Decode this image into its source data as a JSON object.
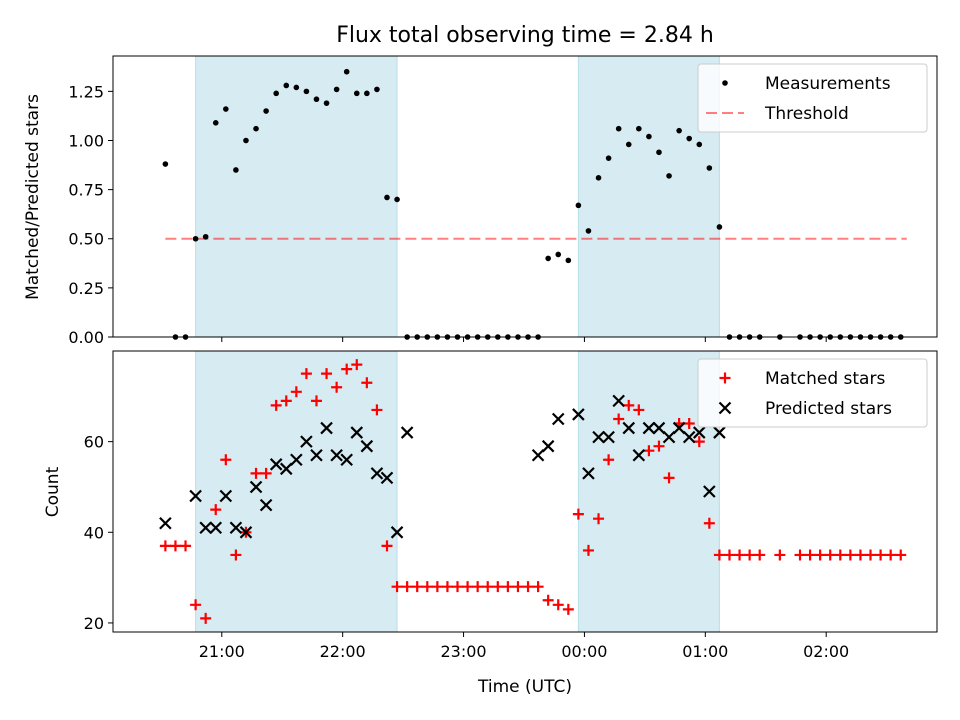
{
  "title": "Flux total observing time = 2.84 h",
  "xlabel": "Time (UTC)",
  "colors": {
    "band": "#add8e6",
    "measurement": "#000000",
    "threshold": "#ff0000",
    "matched": "#ff0000",
    "predicted": "#000000"
  },
  "chart_data": [
    {
      "type": "scatter",
      "ylabel": "Matched/Predicted stars",
      "ylim": [
        0,
        1.43
      ],
      "yticks": [
        "0.00",
        "0.25",
        "0.50",
        "0.75",
        "1.00",
        "1.25"
      ],
      "legend": {
        "placement": "top-right",
        "entries": [
          "Measurements",
          "Threshold"
        ]
      },
      "threshold": {
        "name": "Threshold",
        "y": 0.5,
        "x_start": "20:32",
        "x_end": "02:40"
      },
      "series": [
        {
          "name": "Measurements",
          "x": [
            "20:32",
            "20:37",
            "20:42",
            "20:47",
            "20:52",
            "20:57",
            "21:02",
            "21:07",
            "21:12",
            "21:17",
            "21:22",
            "21:27",
            "21:32",
            "21:37",
            "21:42",
            "21:47",
            "21:52",
            "21:57",
            "22:02",
            "22:07",
            "22:12",
            "22:17",
            "22:22",
            "22:27",
            "22:32",
            "22:37",
            "22:42",
            "22:47",
            "22:52",
            "22:57",
            "23:02",
            "23:07",
            "23:12",
            "23:17",
            "23:22",
            "23:27",
            "23:32",
            "23:37",
            "23:42",
            "23:47",
            "23:52",
            "23:57",
            "00:02",
            "00:07",
            "00:12",
            "00:17",
            "00:22",
            "00:27",
            "00:32",
            "00:37",
            "00:42",
            "00:47",
            "00:52",
            "00:57",
            "01:02",
            "01:07",
            "01:12",
            "01:17",
            "01:22",
            "01:27",
            "01:37",
            "01:47",
            "01:52",
            "01:57",
            "02:02",
            "02:07",
            "02:12",
            "02:17",
            "02:22",
            "02:27",
            "02:32",
            "02:37"
          ],
          "y": [
            0.88,
            0,
            0,
            0.5,
            0.51,
            1.09,
            1.16,
            0.85,
            1.0,
            1.06,
            1.15,
            1.24,
            1.28,
            1.27,
            1.25,
            1.21,
            1.19,
            1.26,
            1.35,
            1.24,
            1.24,
            1.26,
            0.71,
            0.7,
            0,
            0,
            0,
            0,
            0,
            0,
            0,
            0,
            0,
            0,
            0,
            0,
            0,
            0,
            0.4,
            0.42,
            0.39,
            0.67,
            0.54,
            0.81,
            0.91,
            1.06,
            0.98,
            1.06,
            1.02,
            0.94,
            0.82,
            1.05,
            1.01,
            0.98,
            0.86,
            0.56,
            0,
            0,
            0,
            0,
            0,
            0,
            0,
            0,
            0,
            0,
            0,
            0,
            0,
            0,
            0,
            0
          ]
        }
      ]
    },
    {
      "type": "scatter",
      "ylabel": "Count",
      "ylim": [
        18,
        80
      ],
      "yticks": [
        "20",
        "40",
        "60"
      ],
      "legend": {
        "placement": "top-right",
        "entries": [
          "Matched stars",
          "Predicted stars"
        ]
      },
      "series": [
        {
          "name": "Matched stars",
          "x": [
            "20:32",
            "20:37",
            "20:42",
            "20:47",
            "20:52",
            "20:57",
            "21:02",
            "21:07",
            "21:12",
            "21:17",
            "21:22",
            "21:27",
            "21:32",
            "21:37",
            "21:42",
            "21:47",
            "21:52",
            "21:57",
            "22:02",
            "22:07",
            "22:12",
            "22:17",
            "22:22",
            "22:27",
            "22:32",
            "22:37",
            "22:42",
            "22:47",
            "22:52",
            "22:57",
            "23:02",
            "23:07",
            "23:12",
            "23:17",
            "23:22",
            "23:27",
            "23:32",
            "23:37",
            "23:42",
            "23:47",
            "23:52",
            "23:57",
            "00:02",
            "00:07",
            "00:12",
            "00:17",
            "00:22",
            "00:27",
            "00:32",
            "00:37",
            "00:42",
            "00:47",
            "00:52",
            "00:57",
            "01:02",
            "01:07",
            "01:12",
            "01:17",
            "01:22",
            "01:27",
            "01:37",
            "01:47",
            "01:52",
            "01:57",
            "02:02",
            "02:07",
            "02:12",
            "02:17",
            "02:22",
            "02:27",
            "02:32",
            "02:37"
          ],
          "y": [
            37,
            37,
            37,
            24,
            21,
            45,
            56,
            35,
            40,
            53,
            53,
            68,
            69,
            71,
            75,
            69,
            75,
            72,
            76,
            77,
            73,
            67,
            37,
            28,
            28,
            28,
            28,
            28,
            28,
            28,
            28,
            28,
            28,
            28,
            28,
            28,
            28,
            28,
            25,
            24,
            23,
            44,
            36,
            43,
            56,
            65,
            68,
            67,
            58,
            59,
            52,
            64,
            64,
            60,
            42,
            35,
            35,
            35,
            35,
            35,
            35,
            35,
            35,
            35,
            35,
            35,
            35,
            35,
            35,
            35,
            35,
            35
          ]
        },
        {
          "name": "Predicted stars",
          "x": [
            "20:32",
            "20:47",
            "20:52",
            "20:57",
            "21:02",
            "21:07",
            "21:12",
            "21:17",
            "21:22",
            "21:27",
            "21:32",
            "21:37",
            "21:42",
            "21:47",
            "21:52",
            "21:57",
            "22:02",
            "22:07",
            "22:12",
            "22:17",
            "22:22",
            "22:27",
            "22:32",
            "23:37",
            "23:42",
            "23:47",
            "23:57",
            "00:02",
            "00:07",
            "00:12",
            "00:17",
            "00:22",
            "00:27",
            "00:32",
            "00:37",
            "00:42",
            "00:47",
            "00:52",
            "00:57",
            "01:02",
            "01:07"
          ],
          "y": [
            42,
            48,
            41,
            41,
            48,
            41,
            40,
            50,
            46,
            55,
            54,
            56,
            60,
            57,
            63,
            57,
            56,
            62,
            59,
            53,
            52,
            40,
            62,
            57,
            59,
            65,
            66,
            53,
            61,
            61,
            69,
            63,
            57,
            63,
            63,
            61,
            63,
            61,
            62,
            49,
            62
          ]
        }
      ]
    }
  ],
  "bands": [
    {
      "start": "20:47",
      "end": "22:27"
    },
    {
      "start": "23:57",
      "end": "01:07"
    }
  ],
  "xticks": [
    "21:00",
    "22:00",
    "23:00",
    "00:00",
    "01:00",
    "02:00"
  ]
}
